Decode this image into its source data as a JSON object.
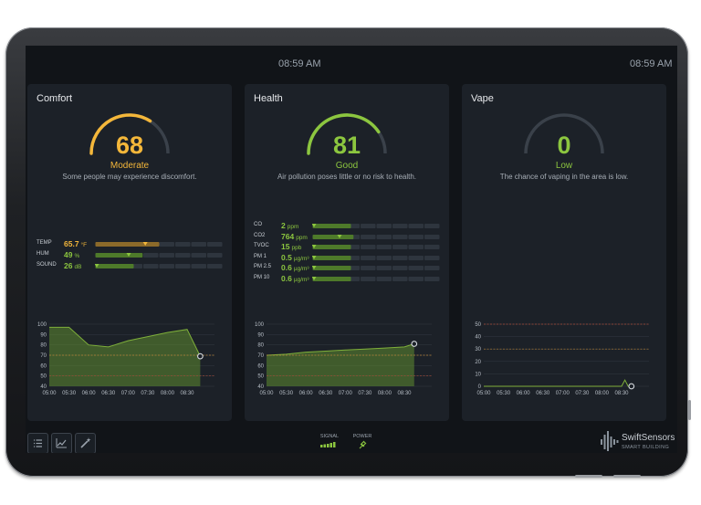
{
  "colors": {
    "bezel": "#1c1e21",
    "screen": "#111418",
    "panel": "#1c2128",
    "orange": "#f4b73a",
    "green": "#8cc63f",
    "track": "#2e353e",
    "grid": "#3a414a",
    "red_line": "#a94a3a",
    "amber_line": "#b8823a"
  },
  "header": {
    "time_center": "08:59 AM",
    "time_right": "08:59 AM"
  },
  "panels": {
    "comfort": {
      "title": "Comfort",
      "score": 68,
      "score_text": "68",
      "level": "Moderate",
      "description": "Some people may experience discomfort.",
      "metrics": [
        {
          "label": "TEMP",
          "value": "65.7",
          "unit": "°F",
          "level": 0.38
        },
        {
          "label": "HUM",
          "value": "49",
          "unit": "%",
          "level": 0.25
        },
        {
          "label": "SOUND",
          "value": "26",
          "unit": "dB",
          "level": 0.0
        }
      ],
      "chart_data": {
        "type": "area",
        "x": [
          "05:00",
          "05:30",
          "06:00",
          "06:30",
          "07:00",
          "07:30",
          "08:00",
          "08:30",
          "08:50"
        ],
        "xticks": [
          "05:00",
          "05:30",
          "06:00",
          "06:30",
          "07:00",
          "07:30",
          "08:00",
          "08:30"
        ],
        "series": [
          {
            "values": [
              97,
              97,
              80,
              78,
              84,
              88,
              92,
              95,
              69
            ]
          }
        ],
        "yticks": [
          "100",
          "90",
          "80",
          "70",
          "60",
          "50",
          "40"
        ],
        "ylim": [
          40,
          100
        ],
        "reference_lines": [
          {
            "y": 70,
            "color": "amber"
          },
          {
            "y": 50,
            "color": "red"
          }
        ]
      }
    },
    "health": {
      "title": "Health",
      "score": 81,
      "score_text": "81",
      "level": "Good",
      "description": "Air pollution poses little or no risk to health.",
      "metrics": [
        {
          "label": "CO",
          "value": "2",
          "unit": "ppm",
          "level": 0.0
        },
        {
          "label": "CO2",
          "value": "764",
          "unit": "ppm",
          "level": 0.2
        },
        {
          "label": "TVOC",
          "value": "15",
          "unit": "ppb",
          "level": 0.0
        },
        {
          "label": "PM 1",
          "value": "0.5",
          "unit": "µg/m³",
          "level": 0.0
        },
        {
          "label": "PM 2.5",
          "value": "0.6",
          "unit": "µg/m³",
          "level": 0.0
        },
        {
          "label": "PM 10",
          "value": "0.6",
          "unit": "µg/m³",
          "level": 0.0
        }
      ],
      "chart_data": {
        "type": "area",
        "x": [
          "05:00",
          "05:30",
          "06:00",
          "06:30",
          "07:00",
          "07:30",
          "08:00",
          "08:30",
          "08:45"
        ],
        "xticks": [
          "05:00",
          "05:30",
          "06:00",
          "06:30",
          "07:00",
          "07:30",
          "08:00",
          "08:30"
        ],
        "series": [
          {
            "values": [
              70,
              71,
              73,
              74,
              75,
              76,
              77,
              78,
              81
            ]
          }
        ],
        "yticks": [
          "100",
          "90",
          "80",
          "70",
          "60",
          "50",
          "40"
        ],
        "ylim": [
          40,
          100
        ],
        "reference_lines": [
          {
            "y": 70,
            "color": "amber"
          },
          {
            "y": 50,
            "color": "red"
          }
        ]
      }
    },
    "vape": {
      "title": "Vape",
      "score": 0,
      "score_text": "0",
      "level": "Low",
      "description": "The chance of vaping in the area is low.",
      "chart_data": {
        "type": "line",
        "x": [
          "05:00",
          "05:30",
          "06:00",
          "06:30",
          "07:00",
          "07:30",
          "08:00",
          "08:30",
          "08:35",
          "08:40",
          "08:45"
        ],
        "xticks": [
          "05:00",
          "05:30",
          "06:00",
          "06:30",
          "07:00",
          "07:30",
          "08:00",
          "08:30"
        ],
        "series": [
          {
            "values": [
              0,
              0,
              0,
              0,
              0,
              0,
              0,
              0,
              5,
              0,
              0
            ]
          }
        ],
        "yticks": [
          "50",
          "40",
          "30",
          "20",
          "10",
          "0"
        ],
        "ylim": [
          0,
          50
        ],
        "reference_lines": [
          {
            "y": 50,
            "color": "red"
          },
          {
            "y": 30,
            "color": "amber"
          }
        ]
      }
    }
  },
  "footer": {
    "buttons": [
      {
        "name": "list-view-button",
        "icon": "list-icon"
      },
      {
        "name": "chart-view-button",
        "icon": "line-chart-icon"
      },
      {
        "name": "magic-wand-button",
        "icon": "wand-icon"
      }
    ],
    "signal_label": "SIGNAL",
    "power_label": "POWER",
    "brand_name": "SwiftSensors",
    "brand_tagline": "SMART BUILDING"
  }
}
